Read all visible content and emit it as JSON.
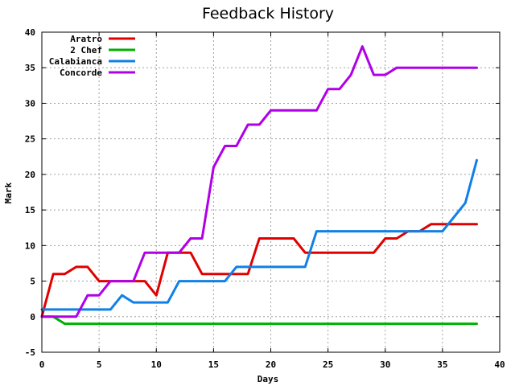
{
  "chart_data": {
    "type": "line",
    "title": "Feedback History",
    "xlabel": "Days",
    "ylabel": "Mark",
    "xlim": [
      0,
      40
    ],
    "ylim": [
      -5,
      40
    ],
    "xticks": [
      0,
      5,
      10,
      15,
      20,
      25,
      30,
      35,
      40
    ],
    "yticks": [
      -5,
      0,
      5,
      10,
      15,
      20,
      25,
      30,
      35,
      40
    ],
    "grid": true,
    "legend_position": "top-left",
    "series": [
      {
        "name": "Aratro",
        "color": "#e00000",
        "x": [
          0,
          1,
          2,
          3,
          4,
          5,
          6,
          7,
          8,
          9,
          10,
          11,
          12,
          13,
          14,
          15,
          16,
          17,
          18,
          19,
          20,
          21,
          22,
          23,
          24,
          25,
          26,
          27,
          28,
          29,
          30,
          31,
          32,
          33,
          34,
          35,
          36,
          37,
          38
        ],
        "y": [
          0,
          6,
          6,
          7,
          7,
          5,
          5,
          5,
          5,
          5,
          3,
          9,
          9,
          9,
          6,
          6,
          6,
          6,
          6,
          11,
          11,
          11,
          11,
          9,
          9,
          9,
          9,
          9,
          9,
          9,
          11,
          11,
          12,
          12,
          13,
          13,
          13,
          13,
          13
        ]
      },
      {
        "name": "2 Chef",
        "color": "#00b000",
        "x": [
          0,
          1,
          2,
          3,
          38
        ],
        "y": [
          0,
          0,
          -1,
          -1,
          -1
        ]
      },
      {
        "name": "Calabianca",
        "color": "#1080e8",
        "x": [
          0,
          1,
          2,
          3,
          4,
          5,
          6,
          7,
          8,
          9,
          10,
          11,
          12,
          13,
          14,
          15,
          16,
          17,
          18,
          19,
          20,
          21,
          22,
          23,
          24,
          25,
          26,
          27,
          28,
          29,
          30,
          31,
          32,
          33,
          34,
          35,
          36,
          37,
          38
        ],
        "y": [
          1,
          1,
          1,
          1,
          1,
          1,
          1,
          3,
          2,
          2,
          2,
          2,
          5,
          5,
          5,
          5,
          5,
          7,
          7,
          7,
          7,
          7,
          7,
          7,
          12,
          12,
          12,
          12,
          12,
          12,
          12,
          12,
          12,
          12,
          12,
          12,
          14,
          16,
          22
        ]
      },
      {
        "name": "Concorde",
        "color": "#b000e8",
        "x": [
          0,
          1,
          2,
          3,
          4,
          5,
          6,
          7,
          8,
          9,
          10,
          11,
          12,
          13,
          14,
          15,
          16,
          17,
          18,
          19,
          20,
          21,
          22,
          23,
          24,
          25,
          26,
          27,
          28,
          29,
          30,
          31,
          32,
          33,
          34,
          35,
          36,
          37,
          38
        ],
        "y": [
          0,
          0,
          0,
          0,
          3,
          3,
          5,
          5,
          5,
          9,
          9,
          9,
          9,
          11,
          11,
          21,
          24,
          24,
          27,
          27,
          29,
          29,
          29,
          29,
          29,
          32,
          32,
          34,
          38,
          34,
          34,
          35,
          35,
          35,
          35,
          35,
          35,
          35,
          35
        ]
      }
    ]
  }
}
